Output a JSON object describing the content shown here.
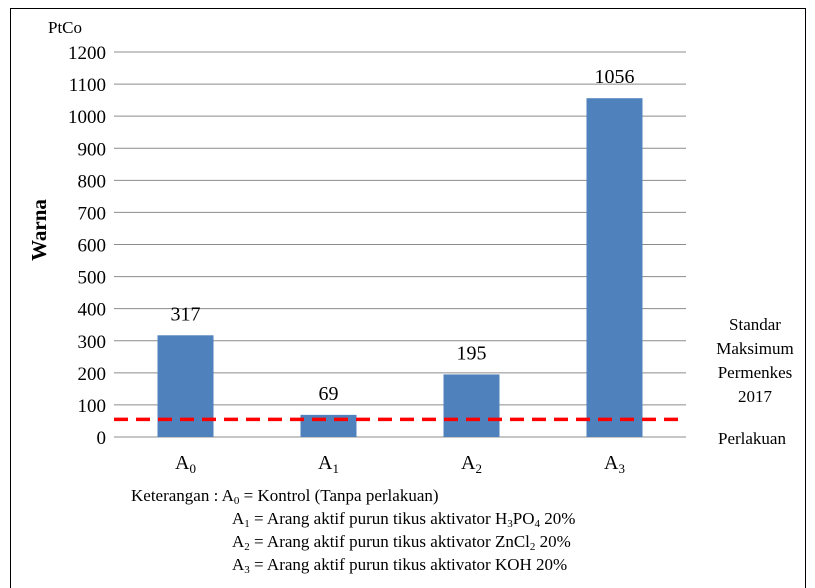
{
  "chart_data": {
    "type": "bar",
    "unit_label": "PtCo",
    "ylabel": "Warna",
    "xlabel": "Perlakuan",
    "categories": [
      {
        "base": "A",
        "sub": "0"
      },
      {
        "base": "A",
        "sub": "1"
      },
      {
        "base": "A",
        "sub": "2"
      },
      {
        "base": "A",
        "sub": "3"
      }
    ],
    "values": [
      317,
      69,
      195,
      1056
    ],
    "data_labels": [
      "317",
      "69",
      "195",
      "1056"
    ],
    "ylim": [
      0,
      1200
    ],
    "yticks": [
      0,
      100,
      200,
      300,
      400,
      500,
      600,
      700,
      800,
      900,
      1000,
      1100,
      1200
    ],
    "grid": true,
    "bar_color": "#4f81bd",
    "reference_line": {
      "value": 55,
      "color": "#ff0000",
      "style": "dashed",
      "label_lines": [
        "Standar",
        "Maksimum",
        "Permenkes",
        "2017"
      ]
    }
  },
  "legend": {
    "prefix": "Keterangan : ",
    "items": [
      {
        "code": "A",
        "sub": "0",
        "text_parts": [
          {
            "t": " = Kontrol (Tanpa perlakuan)"
          }
        ]
      },
      {
        "code": "A",
        "sub": "1",
        "text_parts": [
          {
            "t": " = Arang aktif purun tikus aktivator H"
          },
          {
            "sub": "3"
          },
          {
            "t": "PO"
          },
          {
            "sub": "4"
          },
          {
            "t": " 20%"
          }
        ]
      },
      {
        "code": "A",
        "sub": "2",
        "text_parts": [
          {
            "t": " = Arang aktif purun tikus aktivator ZnCl"
          },
          {
            "sub": "2"
          },
          {
            "t": " 20%"
          }
        ]
      },
      {
        "code": "A",
        "sub": "3",
        "text_parts": [
          {
            "t": " = Arang aktif purun tikus aktivator KOH 20%"
          }
        ]
      }
    ]
  }
}
